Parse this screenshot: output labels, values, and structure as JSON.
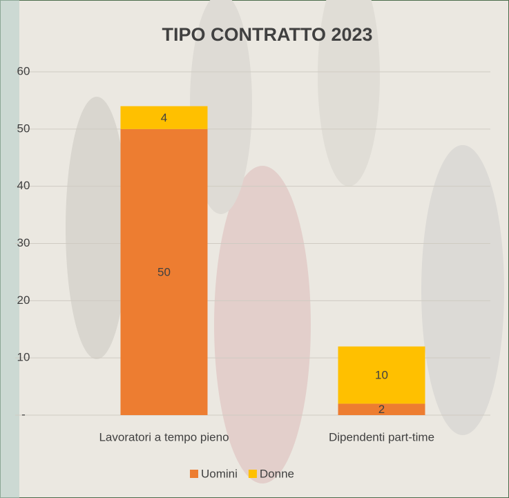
{
  "chart_data": {
    "type": "bar",
    "stacked": true,
    "title": "TIPO CONTRATTO 2023",
    "categories": [
      "Lavoratori a tempo pieno",
      "Dipendenti part-time"
    ],
    "series": [
      {
        "name": "Uomini",
        "color": "#ed7d31",
        "values": [
          50,
          2
        ]
      },
      {
        "name": "Donne",
        "color": "#ffc000",
        "values": [
          4,
          10
        ]
      }
    ],
    "ylim": [
      0,
      60
    ],
    "yticks": [
      {
        "value": 0,
        "label": "-"
      },
      10,
      20,
      30,
      40,
      50,
      60
    ],
    "grid": true,
    "legend": "bottom"
  }
}
